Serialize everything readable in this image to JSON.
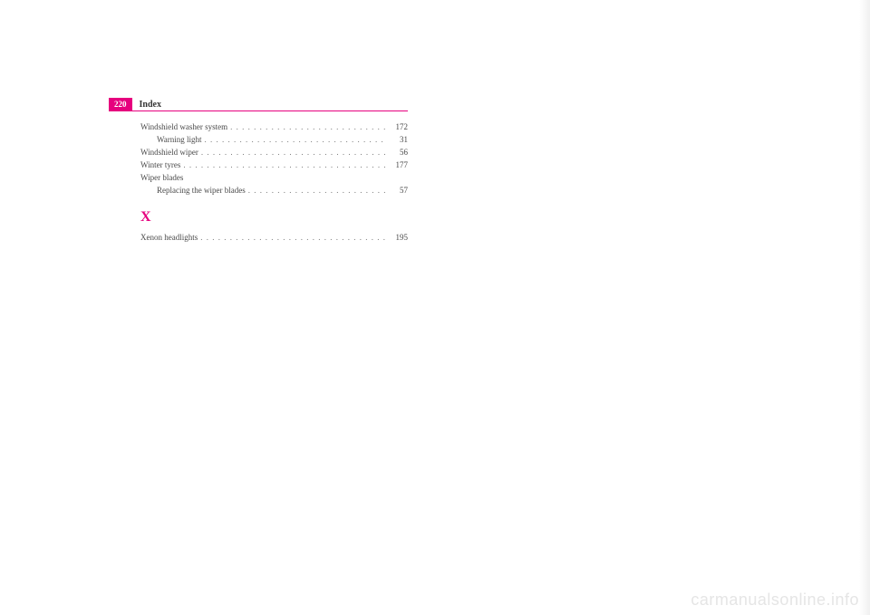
{
  "header": {
    "page_number": "220",
    "section_title": "Index"
  },
  "index": {
    "entries": [
      {
        "label": "Windshield washer system",
        "page": "172",
        "indent": 0
      },
      {
        "label": "Warning light",
        "page": "31",
        "indent": 1
      },
      {
        "label": "Windshield wiper",
        "page": "56",
        "indent": 0
      },
      {
        "label": "Winter tyres",
        "page": "177",
        "indent": 0
      },
      {
        "label": "Wiper blades",
        "page": "",
        "indent": 0,
        "nopage": true
      },
      {
        "label": "Replacing the wiper blades",
        "page": "57",
        "indent": 1
      }
    ],
    "section_letter": "X",
    "x_entries": [
      {
        "label": "Xenon headlights",
        "page": "195",
        "indent": 0
      }
    ]
  },
  "watermark": "carmanualsonline.info",
  "colors": {
    "accent": "#e6007e",
    "text": "#4a4a4a",
    "watermark": "#e5e5e5",
    "background": "#ffffff"
  }
}
